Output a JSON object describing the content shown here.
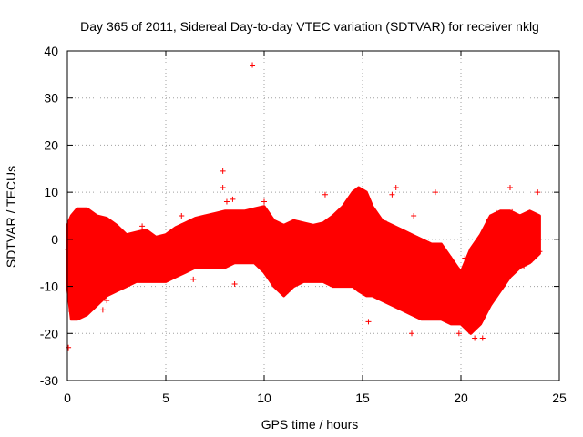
{
  "chart_data": {
    "type": "scatter",
    "title": "Day 365 of 2011, Sidereal Day-to-day VTEC variation (SDTVAR) for receiver nklg",
    "xlabel": "GPS time / hours",
    "ylabel": "SDTVAR / TECUs",
    "xlim": [
      0,
      25
    ],
    "ylim": [
      -30,
      40
    ],
    "xticks": [
      0,
      5,
      10,
      15,
      20,
      25
    ],
    "yticks": [
      -30,
      -20,
      -10,
      0,
      10,
      20,
      30,
      40
    ],
    "xtick_labels": [
      "0",
      "5",
      "10",
      "15",
      "20",
      "25"
    ],
    "ytick_labels": [
      "-30",
      "-20",
      "-10",
      "0",
      "10",
      "20",
      "30",
      "40"
    ],
    "grid": true,
    "marker": "+",
    "color": "#ff0000",
    "band": [
      {
        "t": 0.0,
        "lo": -10,
        "hi": 3
      },
      {
        "t": 0.2,
        "lo": -17,
        "hi": 5
      },
      {
        "t": 0.5,
        "lo": -17,
        "hi": 6.5
      },
      {
        "t": 1.0,
        "lo": -16,
        "hi": 6.5
      },
      {
        "t": 1.5,
        "lo": -14,
        "hi": 5
      },
      {
        "t": 2.0,
        "lo": -12,
        "hi": 4.5
      },
      {
        "t": 2.5,
        "lo": -11,
        "hi": 3
      },
      {
        "t": 3.0,
        "lo": -10,
        "hi": 1
      },
      {
        "t": 3.5,
        "lo": -9,
        "hi": 1.5
      },
      {
        "t": 4.0,
        "lo": -9,
        "hi": 2
      },
      {
        "t": 4.5,
        "lo": -9,
        "hi": 0.5
      },
      {
        "t": 5.0,
        "lo": -9,
        "hi": 1
      },
      {
        "t": 5.5,
        "lo": -8,
        "hi": 2.5
      },
      {
        "t": 6.0,
        "lo": -7,
        "hi": 3.5
      },
      {
        "t": 6.5,
        "lo": -6,
        "hi": 4.5
      },
      {
        "t": 7.0,
        "lo": -6,
        "hi": 5
      },
      {
        "t": 7.5,
        "lo": -6,
        "hi": 5.5
      },
      {
        "t": 8.0,
        "lo": -6,
        "hi": 6
      },
      {
        "t": 8.5,
        "lo": -5,
        "hi": 6
      },
      {
        "t": 9.0,
        "lo": -5,
        "hi": 6
      },
      {
        "t": 9.5,
        "lo": -5,
        "hi": 6.5
      },
      {
        "t": 10.0,
        "lo": -7,
        "hi": 7
      },
      {
        "t": 10.5,
        "lo": -10,
        "hi": 4
      },
      {
        "t": 11.0,
        "lo": -12,
        "hi": 3
      },
      {
        "t": 11.5,
        "lo": -10,
        "hi": 4
      },
      {
        "t": 12.0,
        "lo": -9,
        "hi": 3.5
      },
      {
        "t": 12.5,
        "lo": -9,
        "hi": 3
      },
      {
        "t": 13.0,
        "lo": -9,
        "hi": 3.5
      },
      {
        "t": 13.5,
        "lo": -10,
        "hi": 5
      },
      {
        "t": 14.0,
        "lo": -10,
        "hi": 7
      },
      {
        "t": 14.5,
        "lo": -10,
        "hi": 10
      },
      {
        "t": 14.8,
        "lo": -11,
        "hi": 11
      },
      {
        "t": 15.2,
        "lo": -12,
        "hi": 10
      },
      {
        "t": 15.5,
        "lo": -12,
        "hi": 7
      },
      {
        "t": 16.0,
        "lo": -13,
        "hi": 4
      },
      {
        "t": 16.5,
        "lo": -14,
        "hi": 3
      },
      {
        "t": 17.0,
        "lo": -15,
        "hi": 2
      },
      {
        "t": 17.5,
        "lo": -16,
        "hi": 1
      },
      {
        "t": 18.0,
        "lo": -17,
        "hi": 0
      },
      {
        "t": 18.5,
        "lo": -17,
        "hi": -1
      },
      {
        "t": 19.0,
        "lo": -17,
        "hi": -1
      },
      {
        "t": 19.5,
        "lo": -18,
        "hi": -4
      },
      {
        "t": 20.0,
        "lo": -18,
        "hi": -7
      },
      {
        "t": 20.5,
        "lo": -20,
        "hi": -2
      },
      {
        "t": 21.0,
        "lo": -18,
        "hi": 1
      },
      {
        "t": 21.5,
        "lo": -14,
        "hi": 5
      },
      {
        "t": 22.0,
        "lo": -11,
        "hi": 6
      },
      {
        "t": 22.5,
        "lo": -8,
        "hi": 6
      },
      {
        "t": 23.0,
        "lo": -6,
        "hi": 5
      },
      {
        "t": 23.5,
        "lo": -5,
        "hi": 6
      },
      {
        "t": 24.0,
        "lo": -3,
        "hi": 5
      }
    ],
    "outliers": [
      {
        "x": 0.05,
        "y": -23
      },
      {
        "x": 9.4,
        "y": 37
      },
      {
        "x": 7.9,
        "y": 14.5
      },
      {
        "x": 7.9,
        "y": 11
      },
      {
        "x": 8.1,
        "y": 8
      },
      {
        "x": 8.4,
        "y": 8.5
      },
      {
        "x": 8.5,
        "y": -9.5
      },
      {
        "x": 6.4,
        "y": -8.5
      },
      {
        "x": 3.8,
        "y": 2.8
      },
      {
        "x": 5.8,
        "y": 5
      },
      {
        "x": 10.0,
        "y": 8
      },
      {
        "x": 13.1,
        "y": 9.5
      },
      {
        "x": 14.5,
        "y": 9.5
      },
      {
        "x": 16.5,
        "y": 9.5
      },
      {
        "x": 16.7,
        "y": 11
      },
      {
        "x": 17.6,
        "y": 5
      },
      {
        "x": 18.7,
        "y": 10
      },
      {
        "x": 15.3,
        "y": -17.5
      },
      {
        "x": 17.5,
        "y": -20
      },
      {
        "x": 19.9,
        "y": -20
      },
      {
        "x": 20.7,
        "y": -21
      },
      {
        "x": 21.1,
        "y": -21
      },
      {
        "x": 22.5,
        "y": 11
      },
      {
        "x": 23.9,
        "y": 10
      },
      {
        "x": 23.6,
        "y": 3
      },
      {
        "x": 1.8,
        "y": -15
      },
      {
        "x": 2.0,
        "y": -13
      }
    ],
    "points": [
      {
        "x": 0.0,
        "y": -2.1
      },
      {
        "x": 0.1,
        "y": -8.6
      },
      {
        "x": 0.2,
        "y": -15.3
      },
      {
        "x": 0.3,
        "y": 4.4
      },
      {
        "x": 0.4,
        "y": -11.2
      },
      {
        "x": 0.5,
        "y": 5.9
      },
      {
        "x": 0.6,
        "y": -16.1
      },
      {
        "x": 0.7,
        "y": 2.3
      },
      {
        "x": 0.8,
        "y": -4.7
      },
      {
        "x": 0.9,
        "y": 6.1
      },
      {
        "x": 1.0,
        "y": -13.8
      },
      {
        "x": 1.1,
        "y": -1.2
      },
      {
        "x": 1.2,
        "y": 5.2
      },
      {
        "x": 1.3,
        "y": -9.9
      },
      {
        "x": 1.4,
        "y": -13.0
      },
      {
        "x": 1.5,
        "y": 3.6
      },
      {
        "x": 1.6,
        "y": -6.4
      },
      {
        "x": 1.7,
        "y": 4.3
      },
      {
        "x": 1.8,
        "y": -11.6
      },
      {
        "x": 1.9,
        "y": -3.0
      },
      {
        "x": 2.0,
        "y": 3.9
      },
      {
        "x": 2.1,
        "y": -10.3
      },
      {
        "x": 2.2,
        "y": -4.4
      },
      {
        "x": 2.3,
        "y": 2.6
      },
      {
        "x": 2.4,
        "y": -8.1
      },
      {
        "x": 2.5,
        "y": 1.7
      },
      {
        "x": 2.6,
        "y": -9.6
      },
      {
        "x": 2.7,
        "y": -2.8
      },
      {
        "x": 2.8,
        "y": 0.6
      },
      {
        "x": 2.9,
        "y": -7.2
      },
      {
        "x": 3.0,
        "y": -0.3
      },
      {
        "x": 3.2,
        "y": -8.4
      },
      {
        "x": 3.4,
        "y": 0.9
      },
      {
        "x": 3.6,
        "y": -5.1
      },
      {
        "x": 3.8,
        "y": 1.2
      },
      {
        "x": 4.0,
        "y": -7.6
      },
      {
        "x": 4.2,
        "y": -2.2
      },
      {
        "x": 4.4,
        "y": -8.0
      },
      {
        "x": 4.6,
        "y": -0.4
      },
      {
        "x": 4.8,
        "y": -6.9
      },
      {
        "x": 5.0,
        "y": 0.3
      },
      {
        "x": 5.2,
        "y": -7.4
      },
      {
        "x": 5.4,
        "y": 1.6
      },
      {
        "x": 5.6,
        "y": -4.6
      },
      {
        "x": 5.8,
        "y": 2.8
      },
      {
        "x": 6.0,
        "y": -5.8
      },
      {
        "x": 6.2,
        "y": 3.1
      },
      {
        "x": 6.4,
        "y": -3.3
      },
      {
        "x": 6.6,
        "y": 4.0
      },
      {
        "x": 6.8,
        "y": -5.0
      },
      {
        "x": 7.0,
        "y": 4.2
      },
      {
        "x": 7.2,
        "y": -2.5
      },
      {
        "x": 7.4,
        "y": 5.1
      },
      {
        "x": 7.6,
        "y": -4.7
      },
      {
        "x": 7.8,
        "y": 5.3
      },
      {
        "x": 8.0,
        "y": -1.8
      },
      {
        "x": 8.2,
        "y": 5.6
      },
      {
        "x": 8.4,
        "y": -4.1
      },
      {
        "x": 8.6,
        "y": 4.9
      },
      {
        "x": 8.8,
        "y": -2.9
      },
      {
        "x": 9.0,
        "y": 5.5
      },
      {
        "x": 9.2,
        "y": -4.3
      },
      {
        "x": 9.4,
        "y": 6.0
      },
      {
        "x": 9.6,
        "y": -1.1
      },
      {
        "x": 9.8,
        "y": 6.2
      },
      {
        "x": 10.0,
        "y": -6.0
      },
      {
        "x": 10.2,
        "y": 4.8
      },
      {
        "x": 10.4,
        "y": -8.4
      },
      {
        "x": 10.6,
        "y": 2.6
      },
      {
        "x": 10.8,
        "y": -10.7
      },
      {
        "x": 11.0,
        "y": 1.9
      },
      {
        "x": 11.2,
        "y": -11.0
      },
      {
        "x": 11.4,
        "y": 3.2
      },
      {
        "x": 11.6,
        "y": -8.6
      },
      {
        "x": 11.8,
        "y": 2.9
      },
      {
        "x": 12.0,
        "y": -7.7
      },
      {
        "x": 12.2,
        "y": 2.2
      },
      {
        "x": 12.4,
        "y": -8.1
      },
      {
        "x": 12.6,
        "y": 2.5
      },
      {
        "x": 12.8,
        "y": -6.3
      },
      {
        "x": 13.0,
        "y": 2.8
      },
      {
        "x": 13.2,
        "y": -8.4
      },
      {
        "x": 13.4,
        "y": 4.1
      },
      {
        "x": 13.6,
        "y": -7.9
      },
      {
        "x": 13.8,
        "y": 5.9
      },
      {
        "x": 14.0,
        "y": -8.8
      },
      {
        "x": 14.2,
        "y": 7.6
      },
      {
        "x": 14.4,
        "y": -7.5
      },
      {
        "x": 14.6,
        "y": 9.8
      },
      {
        "x": 14.8,
        "y": -9.6
      },
      {
        "x": 15.0,
        "y": 10.1
      },
      {
        "x": 15.2,
        "y": -10.8
      },
      {
        "x": 15.4,
        "y": 7.4
      },
      {
        "x": 15.6,
        "y": -11.3
      },
      {
        "x": 15.8,
        "y": 4.6
      },
      {
        "x": 16.0,
        "y": -12.1
      },
      {
        "x": 16.2,
        "y": 3.4
      },
      {
        "x": 16.4,
        "y": -12.9
      },
      {
        "x": 16.6,
        "y": 2.6
      },
      {
        "x": 16.8,
        "y": -14.2
      },
      {
        "x": 17.0,
        "y": 1.5
      },
      {
        "x": 17.2,
        "y": -14.8
      },
      {
        "x": 17.4,
        "y": 0.9
      },
      {
        "x": 17.6,
        "y": -15.5
      },
      {
        "x": 17.8,
        "y": 0.1
      },
      {
        "x": 18.0,
        "y": -16.2
      },
      {
        "x": 18.2,
        "y": -0.7
      },
      {
        "x": 18.4,
        "y": -16.6
      },
      {
        "x": 18.6,
        "y": -1.4
      },
      {
        "x": 18.8,
        "y": -16.0
      },
      {
        "x": 19.0,
        "y": -1.8
      },
      {
        "x": 19.2,
        "y": -16.9
      },
      {
        "x": 19.4,
        "y": -3.7
      },
      {
        "x": 19.6,
        "y": -17.2
      },
      {
        "x": 19.8,
        "y": -6.1
      },
      {
        "x": 20.0,
        "y": -17.4
      },
      {
        "x": 20.2,
        "y": -4.0
      },
      {
        "x": 20.4,
        "y": -19.2
      },
      {
        "x": 20.6,
        "y": -3.3
      },
      {
        "x": 20.8,
        "y": -17.5
      },
      {
        "x": 21.0,
        "y": 0.2
      },
      {
        "x": 21.2,
        "y": -15.6
      },
      {
        "x": 21.4,
        "y": 4.1
      },
      {
        "x": 21.6,
        "y": -12.4
      },
      {
        "x": 21.8,
        "y": 5.6
      },
      {
        "x": 22.0,
        "y": -10.2
      },
      {
        "x": 22.2,
        "y": 5.4
      },
      {
        "x": 22.4,
        "y": -7.6
      },
      {
        "x": 22.6,
        "y": 5.8
      },
      {
        "x": 22.8,
        "y": -6.5
      },
      {
        "x": 23.0,
        "y": 4.3
      },
      {
        "x": 23.2,
        "y": -5.6
      },
      {
        "x": 23.4,
        "y": 5.2
      },
      {
        "x": 23.6,
        "y": -4.4
      },
      {
        "x": 23.8,
        "y": 4.7
      },
      {
        "x": 24.0,
        "y": -2.6
      }
    ]
  }
}
